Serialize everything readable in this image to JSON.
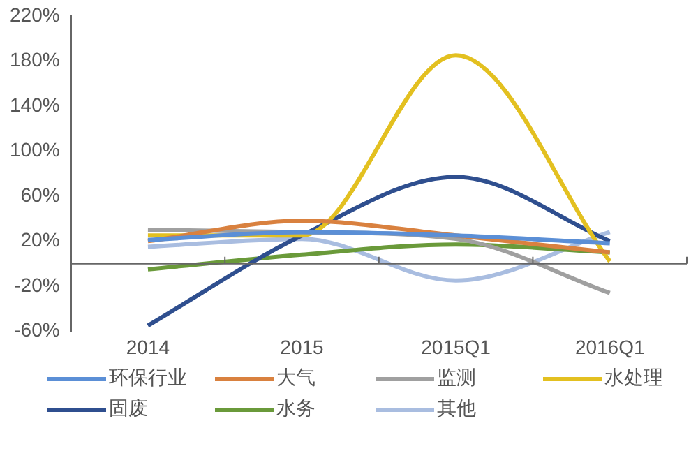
{
  "chart_data": {
    "type": "line",
    "categories": [
      "2014",
      "2015",
      "2015Q1",
      "2016Q1"
    ],
    "ylim": [
      -60,
      220
    ],
    "yticks": [
      {
        "value": -60,
        "label": "-60%"
      },
      {
        "value": -20,
        "label": "-20%"
      },
      {
        "value": 20,
        "label": "20%"
      },
      {
        "value": 60,
        "label": "60%"
      },
      {
        "value": 100,
        "label": "100%"
      },
      {
        "value": 140,
        "label": "140%"
      },
      {
        "value": 180,
        "label": "180%"
      },
      {
        "value": 220,
        "label": "220%"
      }
    ],
    "grid": false,
    "legend": "bottom",
    "marker": "none",
    "line_style": "solid",
    "series": [
      {
        "name": "环保行业",
        "color": "#5b8fd6",
        "values": [
          21,
          28,
          25,
          18
        ]
      },
      {
        "name": "大气",
        "color": "#d9813f",
        "values": [
          20,
          38,
          25,
          10
        ]
      },
      {
        "name": "监测",
        "color": "#a0a0a0",
        "values": [
          30,
          28,
          22,
          -26
        ]
      },
      {
        "name": "水处理",
        "color": "#e3c020",
        "values": [
          25,
          25,
          185,
          2
        ]
      },
      {
        "name": "固废",
        "color": "#2f4f8f",
        "values": [
          -55,
          25,
          77,
          20
        ]
      },
      {
        "name": "水务",
        "color": "#6a9a3a",
        "values": [
          -5,
          8,
          17,
          10
        ]
      },
      {
        "name": "其他",
        "color": "#a9bde0",
        "values": [
          15,
          22,
          -15,
          28
        ]
      }
    ]
  }
}
